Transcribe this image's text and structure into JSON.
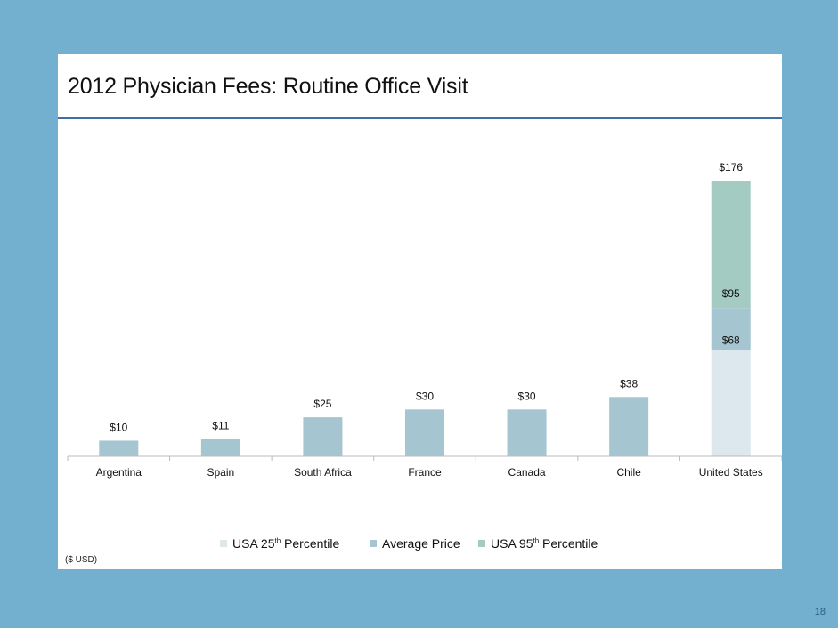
{
  "slide": {
    "title": "2012 Physician Fees: Routine Office Visit",
    "units_note": "($ USD)",
    "page_number": "18"
  },
  "colors": {
    "background": "#73b0d0",
    "title_rule": "#3d6fa8",
    "average_price": "#a5c6d1",
    "usa_25th": "#dde8ee",
    "usa_95th": "#a3cbc2"
  },
  "legend": [
    {
      "base": "USA 25",
      "sup": "th",
      "rest": " Percentile",
      "color": "#dde8ee"
    },
    {
      "base": "Average Price",
      "sup": "",
      "rest": "",
      "color": "#a5c6d1"
    },
    {
      "base": "USA  95",
      "sup": "th",
      "rest": " Percentile",
      "color": "#a3cbc2"
    }
  ],
  "chart_data": {
    "type": "bar",
    "title": "2012 Physician Fees: Routine Office Visit",
    "categories": [
      "Argentina",
      "Spain",
      "South Africa",
      "France",
      "Canada",
      "Chile",
      "United States"
    ],
    "series": [
      {
        "name": "Average Price",
        "values": [
          10,
          11,
          25,
          30,
          30,
          38,
          95
        ],
        "labels": [
          "$10",
          "$11",
          "$25",
          "$30",
          "$30",
          "$38",
          "$95"
        ]
      }
    ],
    "us_percentiles": {
      "usa_25th": {
        "value": 68,
        "label": "$68"
      },
      "average": {
        "value": 95,
        "label": "$95"
      },
      "usa_95th": {
        "value": 176,
        "label": "$176"
      }
    },
    "ylim": [
      0,
      176
    ],
    "units": "($ USD)"
  }
}
